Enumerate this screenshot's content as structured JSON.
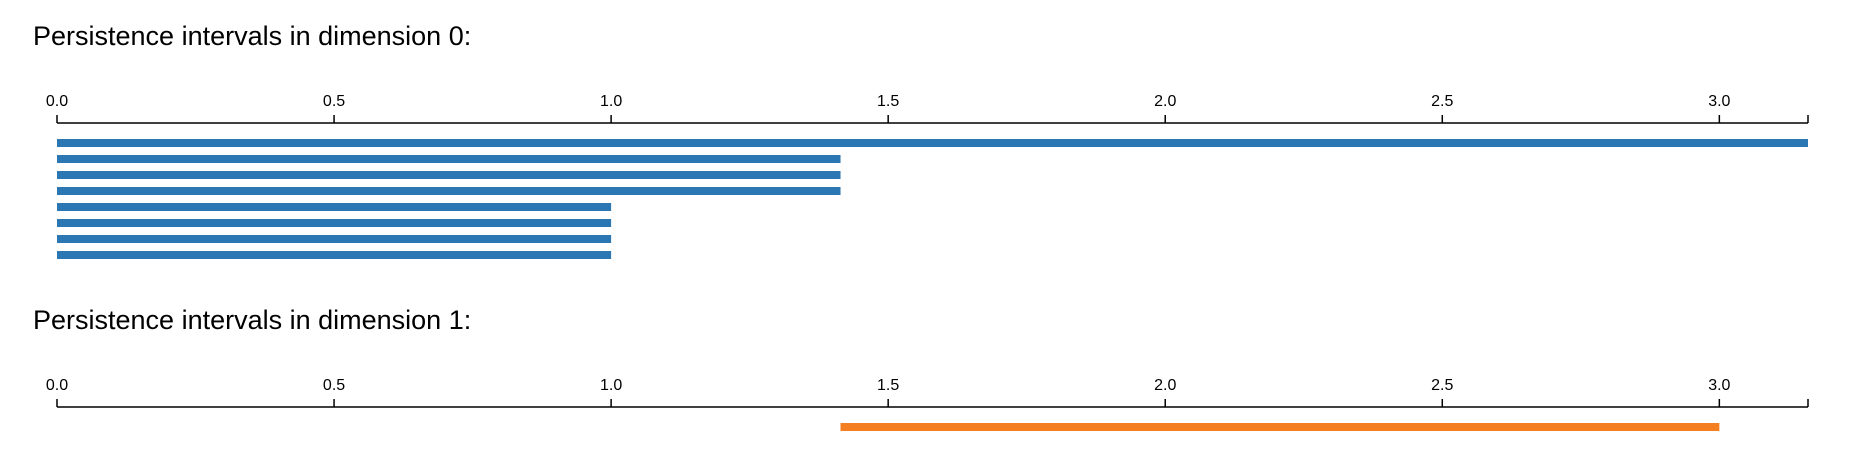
{
  "chart_data": [
    {
      "type": "interval",
      "title": "Persistence intervals in dimension 0:",
      "births": [
        0,
        0,
        0,
        0,
        0,
        0,
        0,
        0
      ],
      "deaths": [
        3.16,
        1.414,
        1.414,
        1.414,
        1,
        1,
        1,
        1
      ],
      "color": "#2a77b4",
      "xlim": [
        0,
        3.16
      ],
      "xticks": [
        {
          "value": 0,
          "label": "0.0"
        },
        {
          "value": 0.5,
          "label": "0.5"
        },
        {
          "value": 1,
          "label": "1.0"
        },
        {
          "value": 1.5,
          "label": "1.5"
        },
        {
          "value": 2,
          "label": "2.0"
        },
        {
          "value": 2.5,
          "label": "2.5"
        },
        {
          "value": 3,
          "label": "3.0"
        }
      ]
    },
    {
      "type": "interval",
      "title": "Persistence intervals in dimension 1:",
      "births": [
        1.414
      ],
      "deaths": [
        3
      ],
      "color": "#f47f20",
      "xlim": [
        0,
        3.16
      ],
      "xticks": [
        {
          "value": 0,
          "label": "0.0"
        },
        {
          "value": 0.5,
          "label": "0.5"
        },
        {
          "value": 1,
          "label": "1.0"
        },
        {
          "value": 1.5,
          "label": "1.5"
        },
        {
          "value": 2,
          "label": "2.0"
        },
        {
          "value": 2.5,
          "label": "2.5"
        },
        {
          "value": 3,
          "label": "3.0"
        }
      ]
    }
  ]
}
